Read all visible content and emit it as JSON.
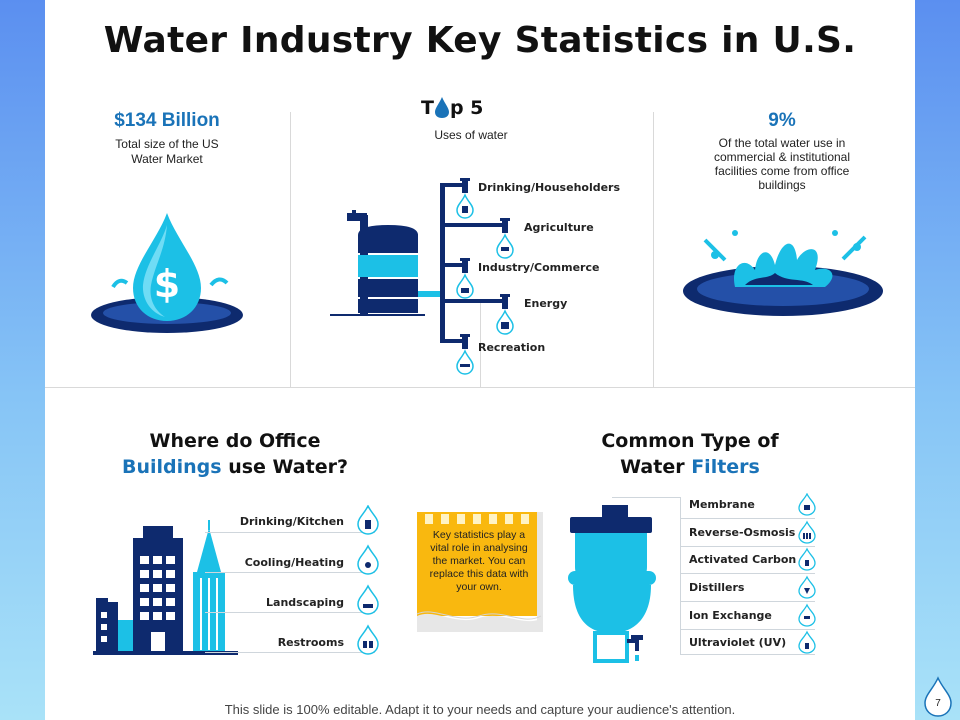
{
  "title": "Water Industry Key Statistics in U.S.",
  "stat_left": {
    "value": "$134 Billion",
    "text_line1": "Total size of the US",
    "text_line2": "Water Market"
  },
  "top5": {
    "title_t": "T",
    "title_rest": "p 5",
    "subtitle": "Uses of water",
    "uses": [
      "Drinking/Householders",
      "Agriculture",
      "Industry/Commerce",
      "Energy",
      "Recreation"
    ]
  },
  "stat_right": {
    "value": "9%",
    "lines": [
      "Of the total water use in",
      "commercial & institutional",
      "facilities come from office",
      "buildings"
    ]
  },
  "offices": {
    "title_line1": "Where do Office",
    "title_highlight": "Buildings",
    "title_rest": " use Water?",
    "items": [
      "Drinking/Kitchen",
      "Cooling/Heating",
      "Landscaping",
      "Restrooms"
    ]
  },
  "note": {
    "lines": [
      "Key statistics play a",
      "vital role in analysing",
      "the market. You can",
      "replace this data with",
      "your own."
    ]
  },
  "filters": {
    "title_line1": "Common Type of",
    "title_water": "Water ",
    "title_highlight": "Filters",
    "items": [
      "Membrane",
      "Reverse-Osmosis",
      "Activated Carbon",
      "Distillers",
      "Ion Exchange",
      "Ultraviolet (UV)"
    ]
  },
  "footer": "This slide is 100% editable. Adapt it to your needs and capture your audience's attention.",
  "page_number": "7",
  "colors": {
    "accent": "#1a73b8",
    "navy": "#0e2a6e",
    "aqua": "#1cc0e6",
    "note_yellow": "#f9b80f"
  }
}
